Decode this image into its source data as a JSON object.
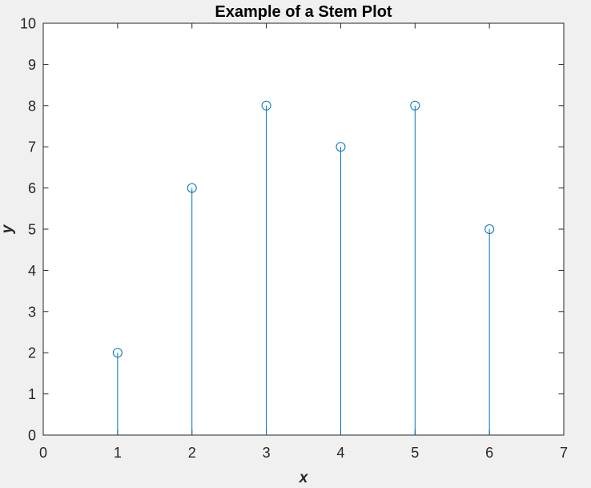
{
  "chart_data": {
    "type": "stem",
    "title": "Example of a Stem Plot",
    "xlabel": "x",
    "ylabel": "y",
    "xlim": [
      0,
      7
    ],
    "ylim": [
      0,
      10
    ],
    "xticks": [
      "0",
      "1",
      "2",
      "3",
      "4",
      "5",
      "6",
      "7"
    ],
    "yticks": [
      "0",
      "1",
      "2",
      "3",
      "4",
      "5",
      "6",
      "7",
      "8",
      "9",
      "10"
    ],
    "x": [
      1,
      2,
      3,
      4,
      5,
      6
    ],
    "y": [
      2,
      6,
      8,
      7,
      8,
      5
    ],
    "marker": "open-circle",
    "grid": false,
    "colors": {
      "series": "#0072bd",
      "axes": "#262626",
      "plot_background": "#ffffff",
      "figure_background": "#f0f0f0"
    }
  }
}
